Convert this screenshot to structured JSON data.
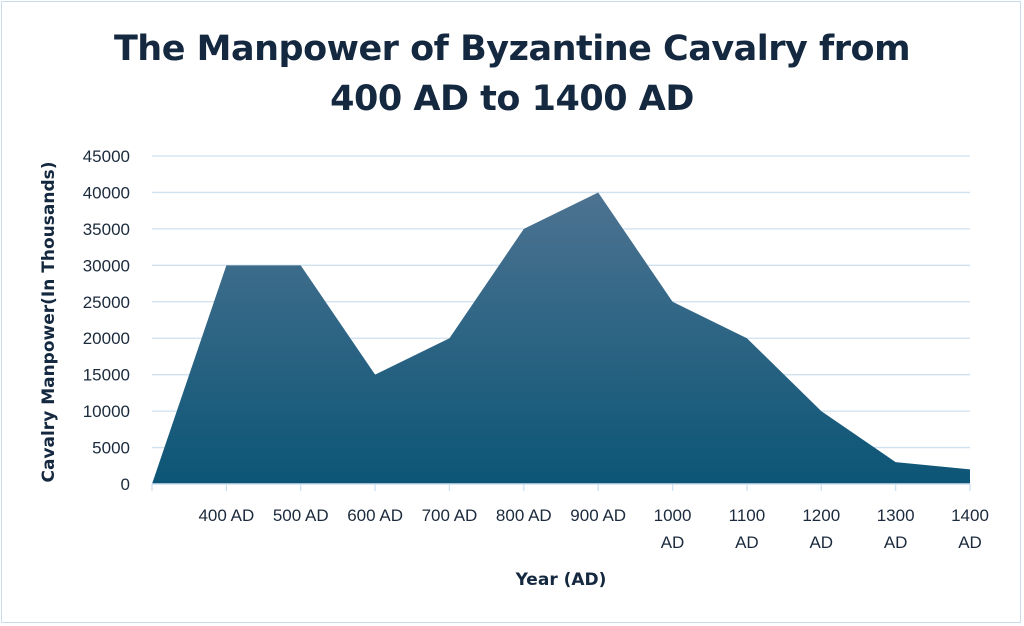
{
  "chart_data": {
    "type": "area",
    "title": "The Manpower of Byzantine Cavalry from 400 AD to 1400 AD",
    "xlabel": "Year (AD)",
    "ylabel": "Cavalry Manpower(In Thousands)",
    "categories": [
      "",
      "400 AD",
      "500 AD",
      "600 AD",
      "700 AD",
      "800 AD",
      "900 AD",
      "1000 AD",
      "1100 AD",
      "1200 AD",
      "1300 AD",
      "1400 AD"
    ],
    "values": [
      0,
      30000,
      30000,
      15000,
      20000,
      35000,
      40000,
      25000,
      20000,
      10000,
      3000,
      2000
    ],
    "ylim": [
      0,
      45000
    ],
    "yticks": [
      0,
      5000,
      10000,
      15000,
      20000,
      25000,
      30000,
      35000,
      40000,
      45000
    ],
    "grid": true,
    "legend": "none",
    "colors": {
      "fill_top": "#4d7391",
      "fill_bottom": "#0c5576",
      "grid": "#cfe0ef",
      "text": "#14283f"
    }
  }
}
